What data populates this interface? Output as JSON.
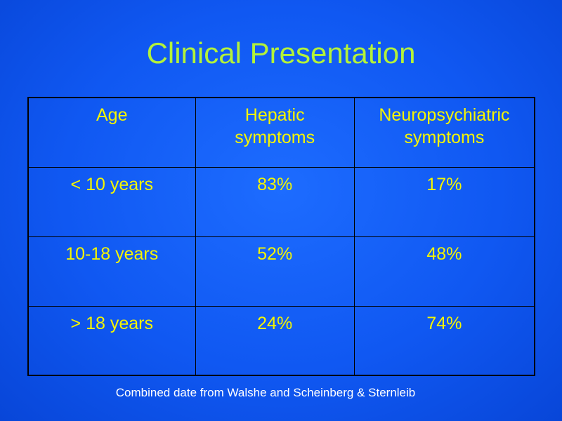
{
  "slide": {
    "title": "Clinical Presentation",
    "footnote": "Combined date from Walshe and Scheinberg & Sternleib"
  },
  "table": {
    "headers": {
      "age": "Age",
      "hepatic": [
        "Hepatic",
        "symptoms"
      ],
      "neuro": [
        "Neuropsychiatric",
        "symptoms"
      ]
    },
    "rows": [
      {
        "age": "< 10 years",
        "hepatic": "83%",
        "neuro": "17%"
      },
      {
        "age": "10-18 years",
        "hepatic": "52%",
        "neuro": "48%"
      },
      {
        "age": "> 18 years",
        "hepatic": "24%",
        "neuro": "74%"
      }
    ]
  },
  "colors": {
    "background": "#1058f2",
    "title": "#b3f23a",
    "table_text": "#f5f500",
    "footnote": "#ffffff",
    "border": "#000000"
  }
}
